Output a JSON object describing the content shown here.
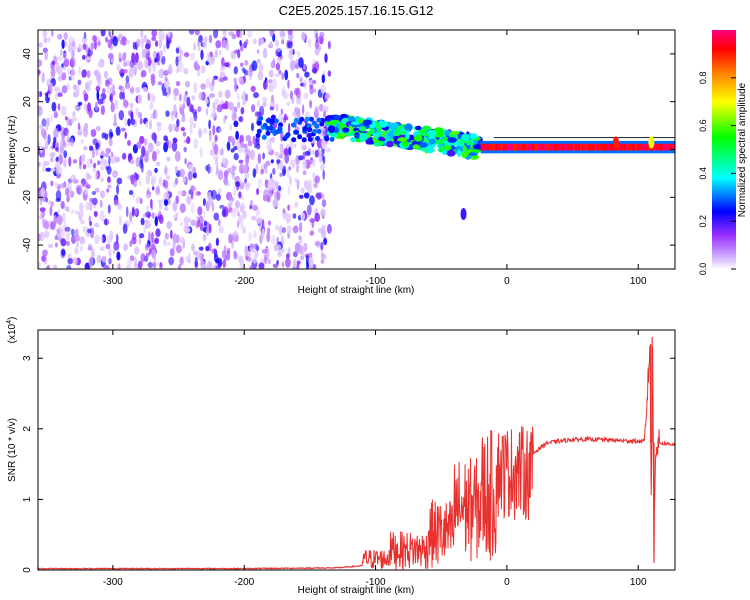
{
  "figure_title": "C2E5.2025.157.16.15.G12",
  "chart_data": [
    {
      "type": "heatmap",
      "xlabel": "Height of straight line (km)",
      "ylabel": "Frequency (Hz)",
      "xlim": [
        -357,
        128
      ],
      "ylim": [
        -50,
        50
      ],
      "xticks": [
        -300,
        -200,
        -100,
        0,
        100
      ],
      "xtick_labels": [
        "-300",
        "-200",
        "-100",
        "0",
        "100"
      ],
      "yticks": [
        -40,
        -20,
        0,
        20,
        40
      ],
      "ytick_labels": [
        "-40",
        "-20",
        "0",
        "20",
        "40"
      ],
      "colorbar": {
        "label": "Normalized spectral amplitude",
        "range": [
          0,
          1
        ],
        "ticks": [
          0,
          0.2,
          0.4,
          0.6,
          0.8
        ],
        "tick_labels": [
          "0.0",
          "0.2",
          "0.4",
          "0.6",
          "0.8"
        ],
        "colors": [
          "#ffffff",
          "#9b30ff",
          "#0000ff",
          "#00ffff",
          "#00ff00",
          "#ffff00",
          "#ff8000",
          "#ff0000",
          "#ff0080"
        ]
      },
      "regions": [
        {
          "name": "noise",
          "x_range": [
            -357,
            -135
          ],
          "freq_range": [
            -50,
            50
          ],
          "amplitude": "0.05-0.25"
        },
        {
          "name": "signal-onset",
          "x_range": [
            -135,
            -20
          ],
          "freq_start": 10,
          "freq_end": 1,
          "amplitude": "0.2-0.6"
        },
        {
          "name": "steady-carrier",
          "x_range": [
            -20,
            128
          ],
          "freq": 1,
          "amplitude": "0.9-1.0"
        }
      ],
      "features": [
        {
          "x": -33,
          "freq": -27,
          "amplitude": 0.2
        },
        {
          "x": 83,
          "freq": 3,
          "amplitude": 0.9
        },
        {
          "x": 110,
          "freq": 3,
          "amplitude": 0.7
        }
      ],
      "grid": false
    },
    {
      "type": "line",
      "xlabel": "Height of straight line (km)",
      "ylabel": "SNR (10 * v/v)",
      "y_scale_label": "(x10",
      "y_scale_exp": "4",
      "y_scale_close": ")",
      "xlim": [
        -357,
        128
      ],
      "ylim": [
        0,
        3.4
      ],
      "xticks": [
        -300,
        -200,
        -100,
        0,
        100
      ],
      "xtick_labels": [
        "-300",
        "-200",
        "-100",
        "0",
        "100"
      ],
      "yticks": [
        0,
        1,
        2,
        3
      ],
      "ytick_labels": [
        "0",
        "1",
        "2",
        "3"
      ],
      "series": [
        {
          "color": "#e8302e",
          "x": [
            -357,
            -300,
            -200,
            -130,
            -110,
            -100,
            -90,
            -80,
            -70,
            -60,
            -50,
            -40,
            -30,
            -20,
            -10,
            0,
            10,
            20,
            30,
            50,
            70,
            90,
            105,
            109,
            110,
            111,
            112,
            113,
            115,
            128
          ],
          "y": [
            0.02,
            0.02,
            0.02,
            0.03,
            0.06,
            0.12,
            0.2,
            0.28,
            0.35,
            0.45,
            0.55,
            0.75,
            0.9,
            1.05,
            1.05,
            1.2,
            1.4,
            1.65,
            1.8,
            1.85,
            1.85,
            1.83,
            1.82,
            3.2,
            0.8,
            3.3,
            0.15,
            1.7,
            1.8,
            1.78
          ],
          "envelope": [
            {
              "x": [
                -110,
                -90
              ],
              "min": 0.0,
              "max": 0.3
            },
            {
              "x": [
                -90,
                -60
              ],
              "min": 0.0,
              "max": 0.55
            },
            {
              "x": [
                -60,
                -40
              ],
              "min": 0.0,
              "max": 1.0
            },
            {
              "x": [
                -40,
                -20
              ],
              "min": 0.1,
              "max": 1.6
            },
            {
              "x": [
                -20,
                -8
              ],
              "min": 0.1,
              "max": 2.0
            },
            {
              "x": [
                -8,
                20
              ],
              "min": 0.7,
              "max": 2.05
            }
          ]
        }
      ],
      "grid": false
    }
  ]
}
